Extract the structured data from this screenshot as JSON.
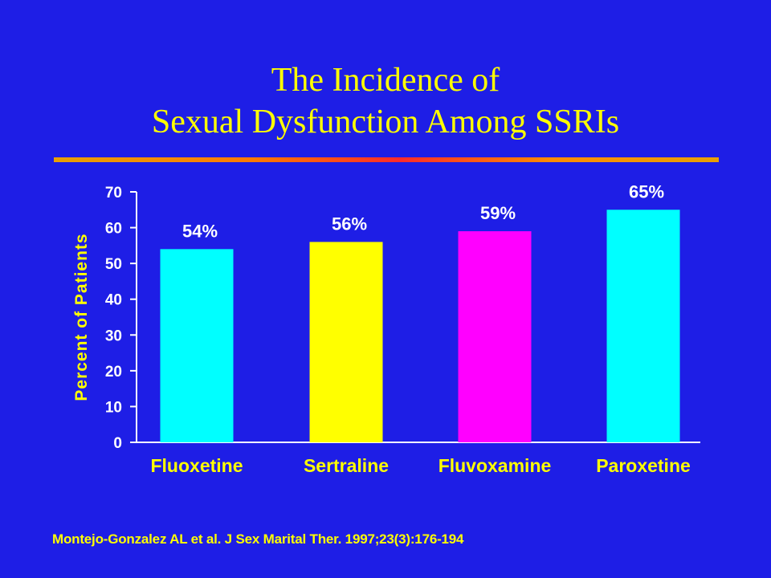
{
  "slide": {
    "title_line1": "The Incidence of",
    "title_line2": "Sexual Dysfunction Among SSRIs",
    "citation": "Montejo-Gonzalez AL et al. J Sex Marital Ther. 1997;23(3):176-194"
  },
  "chart_data": {
    "type": "bar",
    "title": "",
    "xlabel": "",
    "ylabel": "Percent of Patients",
    "categories": [
      "Fluoxetine",
      "Sertraline",
      "Fluvoxamine",
      "Paroxetine"
    ],
    "values": [
      54,
      56,
      59,
      65
    ],
    "data_labels": [
      "54%",
      "56%",
      "59%",
      "65%"
    ],
    "bar_colors": [
      "#00FFFF",
      "#FFFF00",
      "#FF00FF",
      "#00FFFF"
    ],
    "ylim": [
      0,
      70
    ],
    "yticks": [
      0,
      10,
      20,
      30,
      40,
      50,
      60,
      70
    ],
    "grid": false,
    "legend": "none"
  },
  "colors": {
    "background": "#1E1EE6",
    "title_text": "#FFFF00",
    "axis_text": "#FFFFFF",
    "category_text": "#FFFF00",
    "ylabel_text": "#FFFF00"
  }
}
